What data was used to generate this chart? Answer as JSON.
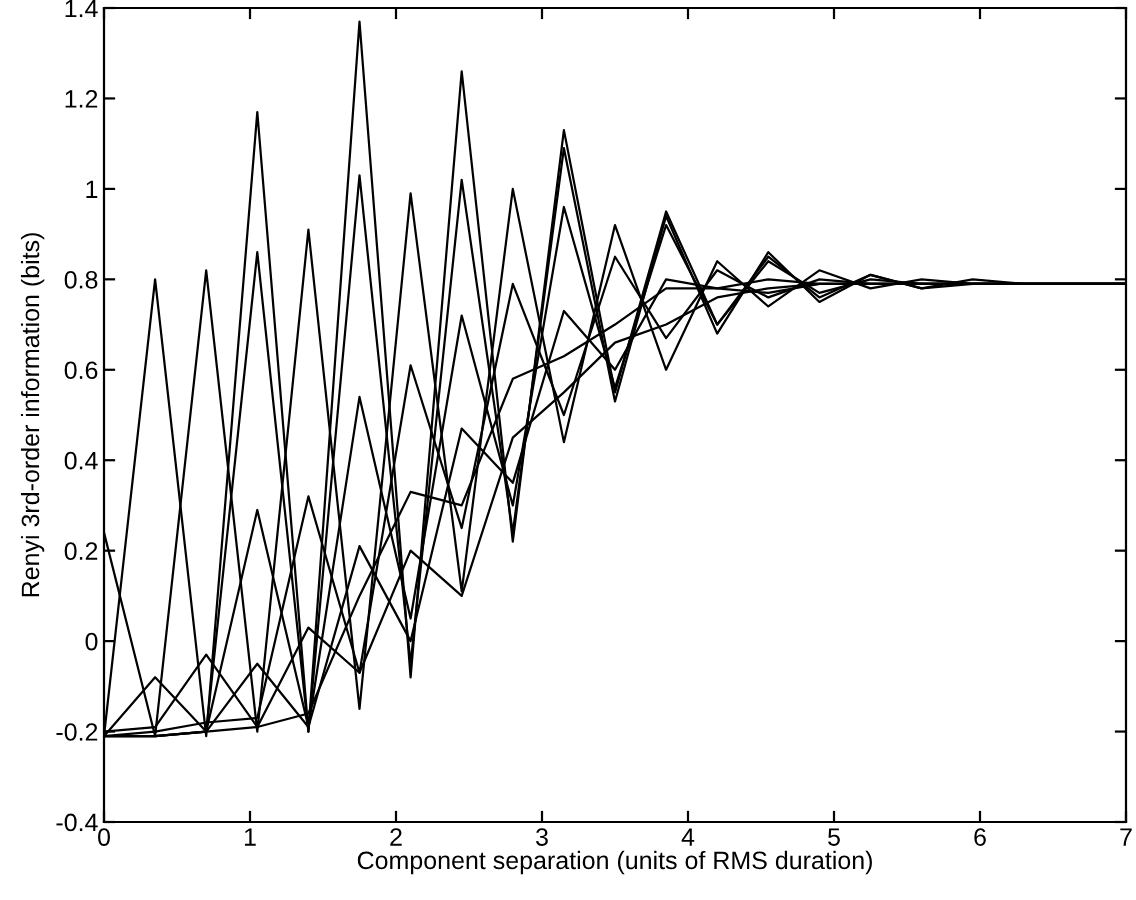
{
  "chart_data": {
    "type": "line",
    "xlabel": "Component separation (units of RMS duration)",
    "ylabel": "Renyi 3rd-order information (bits)",
    "x": [
      0,
      0.35,
      0.7,
      1.05,
      1.4,
      1.75,
      2.1,
      2.45,
      2.8,
      3.15,
      3.5,
      3.85,
      4.2,
      4.55,
      4.9,
      5.25,
      5.6,
      5.95,
      6.3,
      6.65,
      7
    ],
    "series": [
      {
        "color": "#000000",
        "values": [
          -0.21,
          0.8,
          -0.21,
          1.17,
          -0.2,
          1.37,
          -0.08,
          1.26,
          0.22,
          1.13,
          0.55,
          0.95,
          0.7,
          0.85,
          0.76,
          0.81,
          0.78,
          0.8,
          0.79,
          0.79,
          0.79
        ]
      },
      {
        "color": "#000000",
        "values": [
          0.24,
          -0.21,
          0.82,
          -0.2,
          0.91,
          -0.15,
          0.99,
          0.11,
          1.0,
          0.44,
          0.92,
          0.6,
          0.84,
          0.74,
          0.82,
          0.78,
          0.8,
          0.79,
          0.79,
          0.79,
          0.79
        ]
      },
      {
        "color": "#000000",
        "values": [
          -0.21,
          -0.21,
          -0.2,
          0.86,
          -0.2,
          1.03,
          -0.05,
          1.02,
          0.24,
          1.09,
          0.53,
          0.94,
          0.68,
          0.86,
          0.75,
          0.81,
          0.78,
          0.79,
          0.79,
          0.79,
          0.79
        ]
      },
      {
        "color": "#000000",
        "values": [
          -0.21,
          -0.21,
          -0.2,
          0.29,
          -0.19,
          0.54,
          0.05,
          0.72,
          0.3,
          0.96,
          0.56,
          0.92,
          0.7,
          0.84,
          0.77,
          0.8,
          0.79,
          0.79,
          0.79,
          0.79,
          0.79
        ]
      },
      {
        "color": "#000000",
        "values": [
          -0.21,
          -0.2,
          -0.18,
          -0.17,
          0.32,
          -0.07,
          0.61,
          0.25,
          0.79,
          0.5,
          0.85,
          0.67,
          0.82,
          0.76,
          0.8,
          0.79,
          0.79,
          0.79,
          0.79,
          0.79,
          0.79
        ]
      },
      {
        "color": "#000000",
        "values": [
          -0.21,
          -0.08,
          -0.2,
          -0.05,
          -0.19,
          0.21,
          0.0,
          0.47,
          0.35,
          0.73,
          0.6,
          0.8,
          0.78,
          0.77,
          0.79,
          0.79,
          0.79,
          0.79,
          0.79,
          0.79,
          0.79
        ]
      },
      {
        "color": "#000000",
        "values": [
          -0.2,
          -0.19,
          -0.03,
          -0.19,
          0.03,
          -0.07,
          0.2,
          0.1,
          0.45,
          0.55,
          0.66,
          0.7,
          0.76,
          0.78,
          0.79,
          0.79,
          0.79,
          0.79,
          0.79,
          0.79,
          0.79
        ]
      },
      {
        "color": "#000000",
        "values": [
          -0.21,
          -0.21,
          -0.2,
          -0.19,
          -0.16,
          0.1,
          0.33,
          0.3,
          0.58,
          0.63,
          0.7,
          0.78,
          0.78,
          0.8,
          0.79,
          0.79,
          0.79,
          0.79,
          0.79,
          0.79,
          0.79
        ]
      }
    ],
    "xlim": [
      0,
      7
    ],
    "ylim": [
      -0.4,
      1.4
    ],
    "xticks": [
      0,
      1,
      2,
      3,
      4,
      5,
      6,
      7
    ],
    "yticks": [
      -0.4,
      -0.2,
      0,
      0.2,
      0.4,
      0.6,
      0.8,
      1,
      1.2,
      1.4
    ],
    "grid": false,
    "marker": "none",
    "line_style": "solid"
  }
}
